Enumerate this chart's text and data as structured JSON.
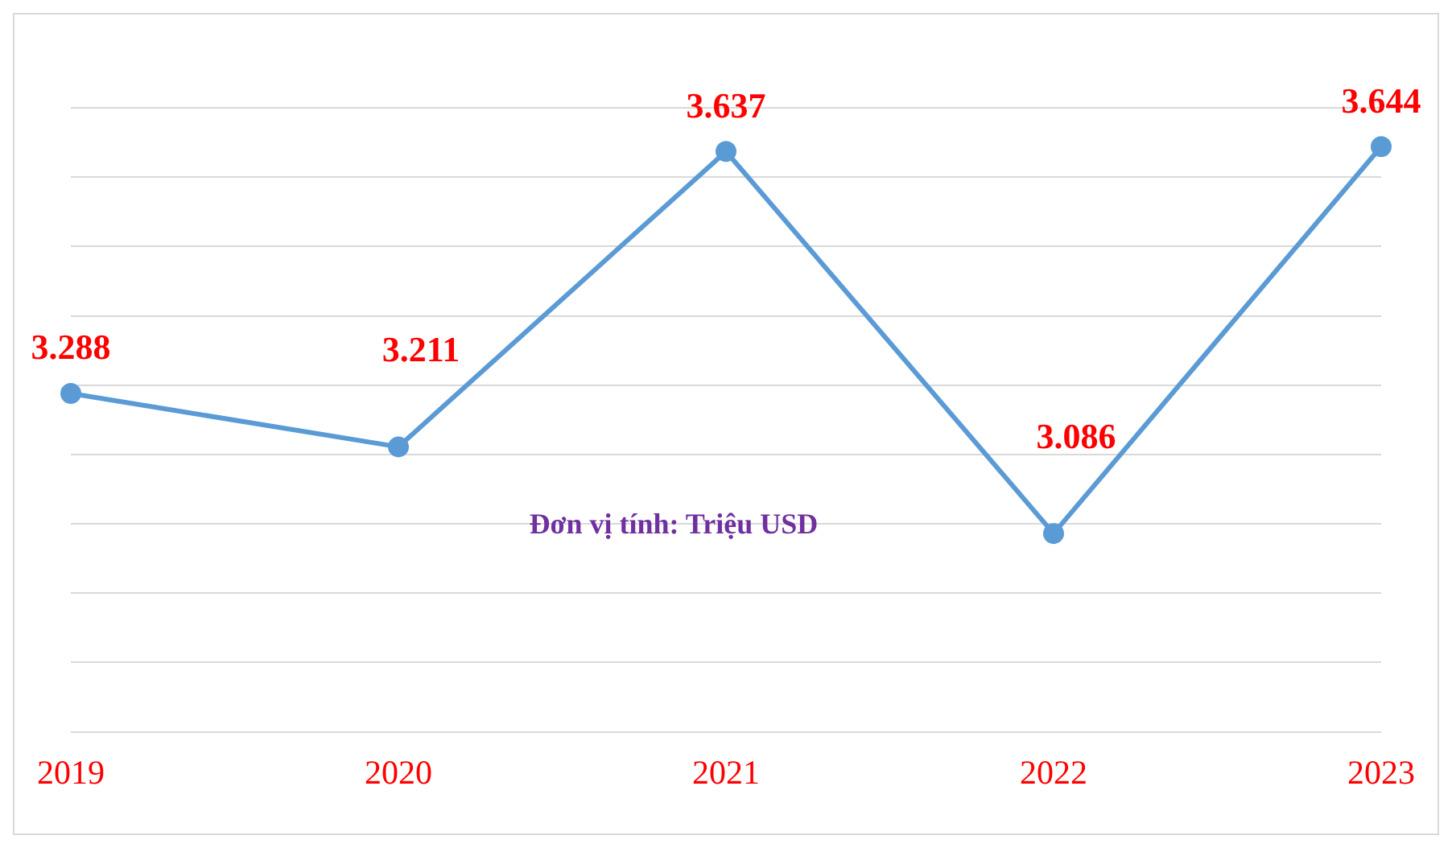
{
  "chart_data": {
    "type": "line",
    "categories": [
      "2019",
      "2020",
      "2021",
      "2022",
      "2023"
    ],
    "series": [
      {
        "color": "#5b9bd5",
        "values": [
          3.288,
          3.211,
          3.637,
          3.086,
          3.644
        ]
      }
    ],
    "ylim": [
      2.8,
      3.7
    ],
    "yticks": [
      {
        "value": 2.8,
        "label": null
      },
      {
        "value": 2.9,
        "label": null
      },
      {
        "value": 3.0,
        "label": null
      },
      {
        "value": 3.1,
        "label": null
      },
      {
        "value": 3.2,
        "label": null
      },
      {
        "value": 3.3,
        "label": null
      },
      {
        "value": 3.4,
        "label": null
      },
      {
        "value": 3.5,
        "label": null
      },
      {
        "value": 3.6,
        "label": null
      },
      {
        "value": 3.7,
        "label": null
      }
    ],
    "tick_labels": "x",
    "grid": "y",
    "marker": "circle",
    "line_style": "solid",
    "data_labels": true,
    "legend": false,
    "annotations": [
      "Đơn vị tính: Triệu USD"
    ]
  }
}
